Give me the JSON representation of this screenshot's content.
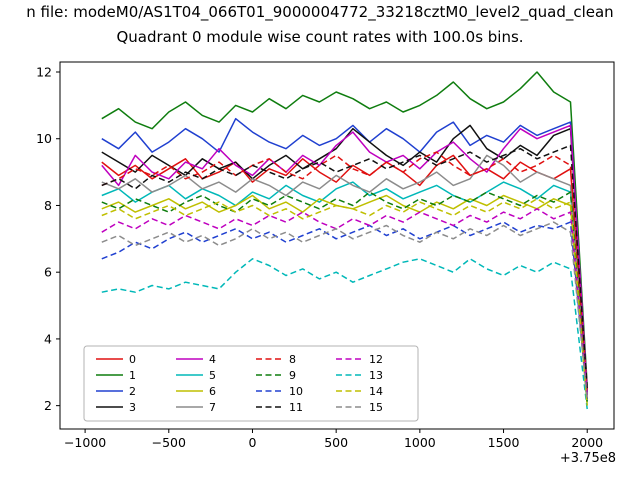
{
  "figure": {
    "title_line1": "n file: modeM0/AS1T04_066T01_9000004772_33218cztM0_level2_quad_clean",
    "title_line2": "Quadrant 0 module wise count rates with 100.0s bins.",
    "x_axis_offset": "+3.75e8"
  },
  "chart_data": {
    "type": "line",
    "title": "Quadrant 0 module wise count rates with 100.0s bins.",
    "xlabel": "",
    "ylabel": "",
    "grid": false,
    "legend_position": "lower left",
    "legend_columns": 4,
    "xlim": [
      -1150,
      2160
    ],
    "ylim": [
      1.3,
      12.3
    ],
    "xticks": [
      -1000,
      -500,
      0,
      500,
      1000,
      1500,
      2000
    ],
    "xtick_labels": [
      "−1000",
      "−500",
      "0",
      "500",
      "1000",
      "1500",
      "2000"
    ],
    "yticks": [
      2,
      4,
      6,
      8,
      10,
      12
    ],
    "ytick_labels": [
      "2",
      "4",
      "6",
      "8",
      "10",
      "12"
    ],
    "x_offset_label": "+3.75e8",
    "x": [
      -900,
      -800,
      -700,
      -600,
      -500,
      -400,
      -300,
      -200,
      -100,
      0,
      100,
      200,
      300,
      400,
      500,
      600,
      700,
      800,
      900,
      1000,
      1100,
      1200,
      1300,
      1400,
      1500,
      1600,
      1700,
      1800,
      1900,
      2000
    ],
    "series": [
      {
        "name": "0",
        "color": "#e01010",
        "dash": false,
        "values": [
          9.3,
          8.9,
          9.2,
          8.8,
          9.1,
          9.4,
          8.8,
          9.0,
          9.3,
          8.7,
          9.1,
          8.9,
          9.4,
          9.0,
          8.7,
          9.2,
          8.9,
          9.3,
          9.0,
          8.6,
          9.2,
          9.5,
          8.9,
          9.1,
          8.8,
          9.3,
          9.0,
          8.8,
          9.1,
          2.2
        ]
      },
      {
        "name": "1",
        "color": "#0f7d0f",
        "dash": false,
        "values": [
          10.6,
          10.9,
          10.5,
          10.3,
          10.8,
          11.1,
          10.7,
          10.5,
          11.0,
          10.8,
          11.2,
          10.9,
          11.3,
          11.1,
          11.4,
          11.2,
          10.9,
          11.1,
          10.8,
          11.0,
          11.3,
          11.7,
          11.2,
          10.9,
          11.1,
          11.5,
          12.0,
          11.4,
          11.1,
          2.6
        ]
      },
      {
        "name": "2",
        "color": "#2040d0",
        "dash": false,
        "values": [
          10.0,
          9.7,
          10.2,
          9.6,
          9.9,
          10.3,
          10.0,
          9.6,
          10.6,
          10.2,
          9.9,
          9.7,
          10.1,
          9.8,
          10.0,
          10.4,
          9.9,
          10.3,
          10.0,
          9.6,
          10.2,
          10.5,
          9.8,
          10.1,
          9.9,
          10.4,
          10.1,
          10.3,
          10.5,
          2.4
        ]
      },
      {
        "name": "3",
        "color": "#111111",
        "dash": false,
        "values": [
          9.6,
          9.3,
          9.0,
          9.5,
          9.2,
          8.9,
          9.4,
          9.1,
          9.3,
          8.8,
          9.2,
          9.5,
          9.1,
          9.4,
          9.7,
          10.3,
          9.9,
          9.5,
          9.2,
          9.6,
          9.3,
          10.0,
          10.4,
          9.7,
          9.4,
          9.8,
          9.5,
          10.1,
          10.3,
          2.3
        ]
      },
      {
        "name": "4",
        "color": "#bf00bf",
        "dash": false,
        "values": [
          9.2,
          8.6,
          9.5,
          9.0,
          8.8,
          9.3,
          9.1,
          9.7,
          9.2,
          8.9,
          9.4,
          9.0,
          9.5,
          9.2,
          9.8,
          10.2,
          9.6,
          9.3,
          9.5,
          9.1,
          9.6,
          9.9,
          9.4,
          9.0,
          9.7,
          10.3,
          10.0,
          10.2,
          10.4,
          2.5
        ]
      },
      {
        "name": "5",
        "color": "#00b8b8",
        "dash": false,
        "values": [
          8.3,
          8.5,
          8.1,
          8.4,
          8.6,
          8.2,
          8.5,
          8.3,
          8.0,
          8.4,
          8.2,
          8.6,
          8.3,
          8.1,
          8.5,
          8.7,
          8.3,
          8.5,
          8.2,
          8.4,
          8.6,
          8.3,
          8.1,
          8.4,
          8.7,
          8.5,
          8.2,
          8.6,
          8.4,
          2.1
        ]
      },
      {
        "name": "6",
        "color": "#bfbf00",
        "dash": false,
        "values": [
          7.9,
          8.1,
          7.8,
          8.0,
          8.2,
          7.9,
          8.1,
          7.8,
          8.0,
          8.3,
          7.9,
          8.1,
          7.8,
          8.2,
          8.0,
          7.9,
          8.1,
          8.3,
          8.0,
          7.8,
          8.1,
          7.9,
          8.2,
          8.0,
          8.3,
          8.1,
          7.9,
          8.2,
          8.0,
          2.0
        ]
      },
      {
        "name": "7",
        "color": "#8c8c8c",
        "dash": false,
        "values": [
          8.7,
          8.5,
          8.8,
          8.4,
          8.6,
          8.9,
          8.5,
          8.7,
          8.4,
          8.8,
          8.6,
          8.3,
          8.7,
          8.5,
          8.9,
          8.6,
          8.4,
          8.8,
          8.5,
          8.7,
          9.0,
          8.6,
          8.8,
          9.5,
          9.2,
          8.7,
          9.0,
          8.8,
          8.6,
          2.3
        ]
      },
      {
        "name": "8",
        "color": "#e01010",
        "dash": true,
        "values": [
          8.6,
          8.8,
          9.1,
          8.9,
          9.2,
          8.8,
          9.0,
          9.3,
          8.9,
          9.2,
          9.4,
          9.0,
          8.8,
          9.2,
          9.5,
          9.1,
          8.9,
          9.3,
          9.0,
          9.4,
          9.6,
          9.2,
          8.9,
          9.1,
          9.4,
          9.0,
          9.2,
          9.5,
          9.2,
          2.4
        ]
      },
      {
        "name": "9",
        "color": "#0f7d0f",
        "dash": true,
        "values": [
          8.1,
          7.9,
          8.2,
          8.0,
          7.8,
          8.1,
          8.3,
          8.0,
          7.8,
          8.2,
          8.0,
          8.3,
          8.1,
          7.9,
          8.2,
          8.0,
          8.4,
          8.1,
          7.9,
          8.2,
          8.0,
          8.3,
          8.1,
          8.4,
          8.2,
          8.0,
          8.3,
          8.1,
          8.4,
          2.1
        ]
      },
      {
        "name": "10",
        "color": "#2040d0",
        "dash": true,
        "values": [
          6.4,
          6.6,
          6.9,
          6.7,
          7.0,
          7.2,
          6.9,
          7.1,
          7.3,
          7.0,
          7.2,
          6.9,
          7.1,
          7.3,
          7.0,
          7.2,
          7.4,
          7.1,
          7.3,
          7.0,
          7.2,
          7.4,
          7.1,
          7.3,
          7.5,
          7.2,
          7.4,
          7.3,
          7.5,
          2.2
        ]
      },
      {
        "name": "11",
        "color": "#111111",
        "dash": true,
        "values": [
          8.6,
          8.8,
          8.5,
          8.9,
          8.7,
          9.0,
          8.8,
          9.1,
          8.9,
          9.2,
          9.0,
          8.8,
          9.1,
          9.3,
          9.0,
          9.2,
          9.4,
          9.1,
          9.3,
          9.5,
          9.2,
          9.4,
          9.6,
          9.3,
          9.5,
          9.7,
          9.4,
          9.6,
          9.8,
          2.5
        ]
      },
      {
        "name": "12",
        "color": "#bf00bf",
        "dash": true,
        "values": [
          7.2,
          7.5,
          7.3,
          7.6,
          7.4,
          7.7,
          7.5,
          7.3,
          7.6,
          7.4,
          7.7,
          7.5,
          7.8,
          7.5,
          7.3,
          7.6,
          7.4,
          7.7,
          7.5,
          7.8,
          7.6,
          7.4,
          7.7,
          7.5,
          7.8,
          7.6,
          7.9,
          7.6,
          7.8,
          2.3
        ]
      },
      {
        "name": "13",
        "color": "#00b8b8",
        "dash": true,
        "values": [
          5.4,
          5.5,
          5.4,
          5.6,
          5.5,
          5.7,
          5.6,
          5.5,
          6.0,
          6.4,
          6.2,
          5.9,
          6.1,
          5.8,
          6.0,
          5.7,
          5.9,
          6.1,
          6.3,
          6.4,
          6.2,
          6.0,
          6.4,
          6.1,
          5.9,
          6.2,
          6.0,
          6.3,
          6.1,
          1.9
        ]
      },
      {
        "name": "14",
        "color": "#bfbf00",
        "dash": true,
        "values": [
          7.7,
          7.9,
          7.6,
          7.8,
          8.0,
          7.7,
          7.9,
          8.1,
          7.8,
          8.0,
          7.7,
          7.9,
          7.6,
          7.8,
          8.0,
          7.9,
          7.7,
          8.0,
          7.8,
          8.1,
          7.9,
          7.7,
          8.0,
          7.8,
          8.1,
          7.9,
          8.2,
          7.9,
          8.1,
          2.0
        ]
      },
      {
        "name": "15",
        "color": "#8c8c8c",
        "dash": true,
        "values": [
          6.9,
          7.1,
          6.8,
          7.0,
          7.2,
          6.9,
          7.1,
          6.8,
          7.0,
          7.3,
          7.0,
          7.2,
          6.9,
          7.1,
          7.3,
          7.0,
          7.2,
          7.4,
          7.1,
          6.9,
          7.2,
          7.0,
          7.3,
          7.1,
          7.4,
          7.1,
          7.3,
          7.5,
          7.2,
          2.2
        ]
      }
    ]
  }
}
